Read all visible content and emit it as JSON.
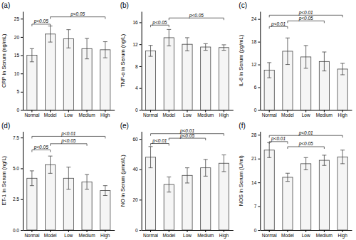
{
  "chart_data": [
    {
      "type": "bar",
      "title": "(a)",
      "ylabel": "CRP in Serum (ng/mL)",
      "categories": [
        "Normal",
        "Model",
        "Low",
        "Medium",
        "High"
      ],
      "values": [
        15.0,
        20.8,
        19.5,
        16.8,
        16.5
      ],
      "errors": [
        1.8,
        2.2,
        2.5,
        2.8,
        2.2
      ],
      "color": "#f5f5f5",
      "ylim": [
        0,
        27
      ],
      "yticks": [
        0,
        5,
        10,
        15,
        20,
        25
      ],
      "annotations": [
        {
          "text": "p<0.05",
          "x1": "Normal",
          "x2": "Model",
          "y": 23.5
        },
        {
          "text": "p<0.05",
          "x1": "Model",
          "x2": "High",
          "y": 25.5
        }
      ]
    },
    {
      "type": "bar",
      "title": "(b)",
      "ylabel": "TNF-α in Serum (ng/L)",
      "categories": [
        "Normal",
        "Model",
        "Low",
        "Medium",
        "High"
      ],
      "values": [
        10.8,
        13.2,
        12.0,
        11.5,
        11.4
      ],
      "errors": [
        1.0,
        1.5,
        1.2,
        0.6,
        0.5
      ],
      "color": "#f5f5f5",
      "ylim": [
        0,
        18
      ],
      "yticks": [
        0,
        4,
        8,
        12,
        16
      ],
      "annotations": [
        {
          "text": "p<0.05",
          "x1": "Normal",
          "x2": "Model",
          "y": 15.5
        },
        {
          "text": "p<0.05",
          "x1": "Model",
          "x2": "High",
          "y": 16.8
        }
      ]
    },
    {
      "type": "bar",
      "title": "(c)",
      "ylabel": "IL-6 in Serum (pg/mL)",
      "categories": [
        "Normal",
        "Model",
        "Low",
        "Medium",
        "High"
      ],
      "values": [
        10.5,
        15.5,
        14.0,
        12.8,
        10.8
      ],
      "errors": [
        2.0,
        3.5,
        3.0,
        2.5,
        1.5
      ],
      "color": "#f5f5f5",
      "ylim": [
        0,
        26
      ],
      "yticks": [
        0,
        6,
        12,
        18,
        24
      ],
      "annotations": [
        {
          "text": "p<0.01",
          "x1": "Normal",
          "x2": "Model",
          "y": 22.0
        },
        {
          "text": "p<0.05",
          "x1": "Model",
          "x2": "Medium",
          "y": 23.5
        },
        {
          "text": "p<0.01",
          "x1": "Normal",
          "x2": "High",
          "y": 25.0
        }
      ]
    },
    {
      "type": "bar",
      "title": "(d)",
      "ylabel": "ET-1 in Serum (ng/L)",
      "categories": [
        "Normal",
        "Model",
        "Low",
        "Medium",
        "High"
      ],
      "values": [
        4.2,
        5.3,
        4.2,
        3.9,
        3.2
      ],
      "errors": [
        0.6,
        0.7,
        0.9,
        0.6,
        0.4
      ],
      "color": "#f5f5f5",
      "ylim": [
        0,
        8.0
      ],
      "yticks": [
        {
          "value": 0,
          "label": "0.0"
        },
        2.5,
        {
          "value": 5,
          "label": "5.0"
        },
        7.5
      ],
      "annotations": [
        {
          "text": "p<0.05",
          "x1": "Normal",
          "x2": "Model",
          "y": 6.5
        },
        {
          "text": "p<0.05",
          "x1": "Model",
          "x2": "Medium",
          "y": 7.0
        },
        {
          "text": "p<0.01",
          "x1": "Normal",
          "x2": "High",
          "y": 7.6
        }
      ]
    },
    {
      "type": "bar",
      "title": "(e)",
      "ylabel": "NO in Serum (μmol/L)",
      "categories": [
        "Normal",
        "Model",
        "Low",
        "Medium",
        "High"
      ],
      "values": [
        48.0,
        30.0,
        36.0,
        41.0,
        44.0
      ],
      "errors": [
        7.0,
        5.0,
        5.0,
        5.5,
        5.5
      ],
      "color": "#f5f5f5",
      "ylim": [
        0,
        65
      ],
      "yticks": [
        0,
        20,
        40,
        60
      ],
      "annotations": [
        {
          "text": "p<0.01",
          "x1": "Normal",
          "x2": "Model",
          "y": 57.0
        },
        {
          "text": "p<0.05",
          "x1": "Model",
          "x2": "Medium",
          "y": 60.5
        },
        {
          "text": "p<0.01",
          "x1": "Normal",
          "x2": "High",
          "y": 63.5
        }
      ]
    },
    {
      "type": "bar",
      "title": "(f)",
      "ylabel": "NOS in Serum (U/ml)",
      "categories": [
        "Normal",
        "Model",
        "Low",
        "Medium",
        "High"
      ],
      "values": [
        23.5,
        15.5,
        19.5,
        20.5,
        21.5
      ],
      "errors": [
        2.2,
        1.2,
        1.8,
        1.5,
        2.0
      ],
      "color": "#f5f5f5",
      "ylim": [
        0,
        29
      ],
      "yticks": [
        0,
        7,
        14,
        21,
        28
      ],
      "annotations": [
        {
          "text": "p<0.01",
          "x1": "Normal",
          "x2": "Model",
          "y": 26.0
        },
        {
          "text": "p<0.05",
          "x1": "Model",
          "x2": "Medium",
          "y": 24.5
        },
        {
          "text": "p<0.01",
          "x1": "Normal",
          "x2": "High",
          "y": 27.8
        }
      ]
    }
  ]
}
